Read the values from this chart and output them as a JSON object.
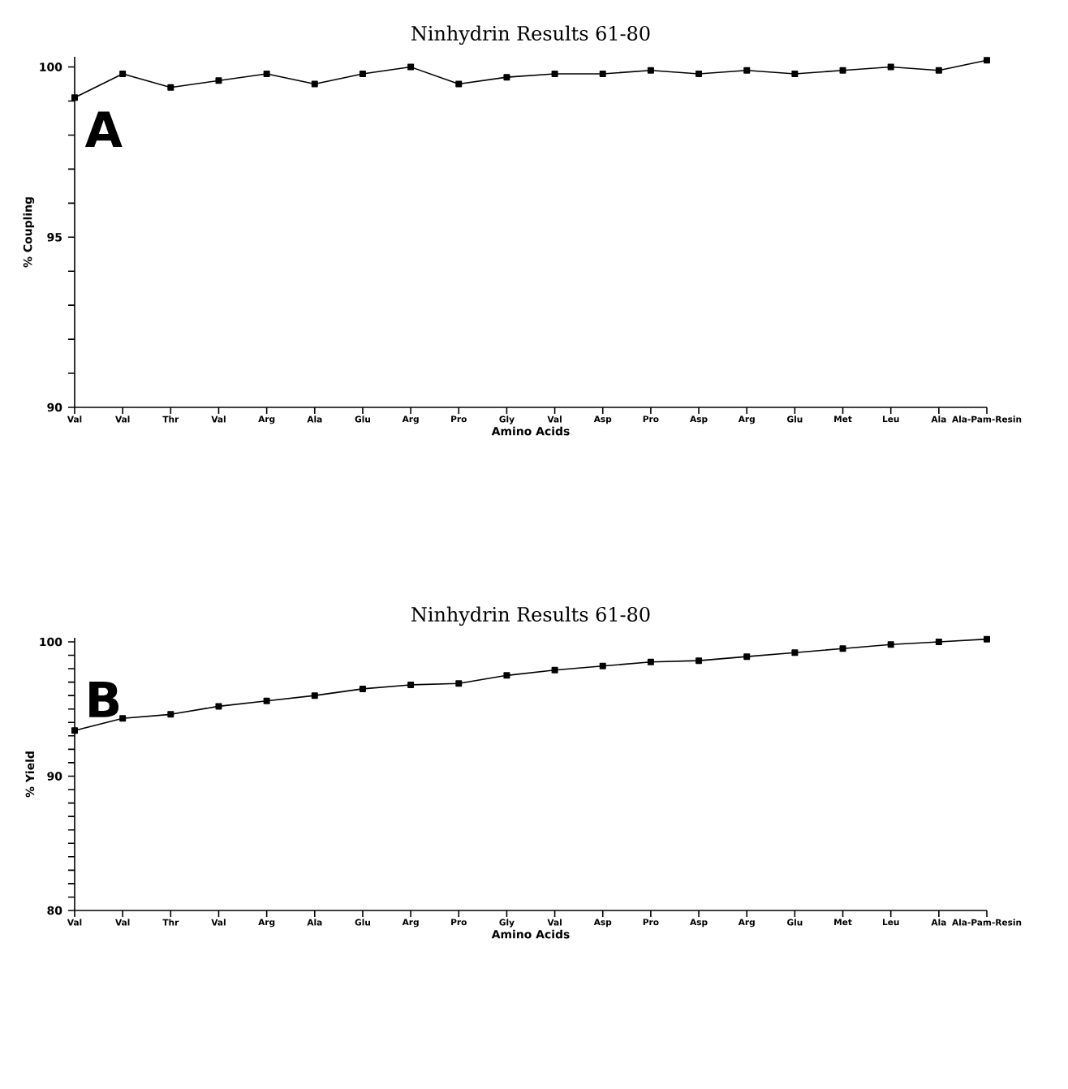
{
  "chart_data": [
    {
      "type": "line",
      "title": "Ninhydrin Results 61-80",
      "xlabel": "Amino Acids",
      "ylabel": "% Coupling",
      "categories": [
        "Val",
        "Val",
        "Thr",
        "Val",
        "Arg",
        "Ala",
        "Glu",
        "Arg",
        "Pro",
        "Gly",
        "Val",
        "Asp",
        "Pro",
        "Asp",
        "Arg",
        "Glu",
        "Met",
        "Leu",
        "Ala",
        "Ala-Pam-Resin"
      ],
      "series": [
        {
          "color": "#000000",
          "values": [
            99.1,
            99.8,
            99.4,
            99.6,
            99.8,
            99.5,
            99.8,
            100.0,
            99.5,
            99.7,
            99.8,
            99.8,
            99.9,
            99.8,
            99.9,
            99.8,
            99.9,
            100.0,
            99.9,
            100.2
          ]
        }
      ],
      "ylim": [
        90,
        100.3
      ],
      "yticks": [
        90,
        {
          "value": 91,
          "label": null
        },
        {
          "value": 92,
          "label": null
        },
        {
          "value": 93,
          "label": null
        },
        {
          "value": 94,
          "label": null
        },
        95,
        {
          "value": 96,
          "label": null
        },
        {
          "value": 97,
          "label": null
        },
        {
          "value": 98,
          "label": null
        },
        {
          "value": 99,
          "label": null
        },
        100
      ],
      "marker": "square",
      "annotations": [
        "A"
      ]
    },
    {
      "type": "line",
      "title": "Ninhydrin Results 61-80",
      "xlabel": "Amino Acids",
      "ylabel": "% Yield",
      "categories": [
        "Val",
        "Val",
        "Thr",
        "Val",
        "Arg",
        "Ala",
        "Glu",
        "Arg",
        "Pro",
        "Gly",
        "Val",
        "Asp",
        "Pro",
        "Asp",
        "Arg",
        "Glu",
        "Met",
        "Leu",
        "Ala",
        "Ala-Pam-Resin"
      ],
      "series": [
        {
          "color": "#000000",
          "values": [
            93.4,
            94.3,
            94.6,
            95.2,
            95.6,
            96.0,
            96.5,
            96.8,
            96.9,
            97.5,
            97.9,
            98.2,
            98.5,
            98.6,
            98.9,
            99.2,
            99.5,
            99.8,
            100.0,
            100.2
          ]
        }
      ],
      "ylim": [
        80,
        100.3
      ],
      "yticks": [
        80,
        {
          "value": 81,
          "label": null
        },
        {
          "value": 82,
          "label": null
        },
        {
          "value": 83,
          "label": null
        },
        {
          "value": 84,
          "label": null
        },
        {
          "value": 85,
          "label": null
        },
        {
          "value": 86,
          "label": null
        },
        {
          "value": 87,
          "label": null
        },
        {
          "value": 88,
          "label": null
        },
        {
          "value": 89,
          "label": null
        },
        90,
        {
          "value": 91,
          "label": null
        },
        {
          "value": 92,
          "label": null
        },
        {
          "value": 93,
          "label": null
        },
        {
          "value": 94,
          "label": null
        },
        {
          "value": 95,
          "label": null
        },
        {
          "value": 96,
          "label": null
        },
        {
          "value": 97,
          "label": null
        },
        {
          "value": 98,
          "label": null
        },
        {
          "value": 99,
          "label": null
        },
        100
      ],
      "marker": "square",
      "annotations": [
        "B"
      ]
    }
  ]
}
